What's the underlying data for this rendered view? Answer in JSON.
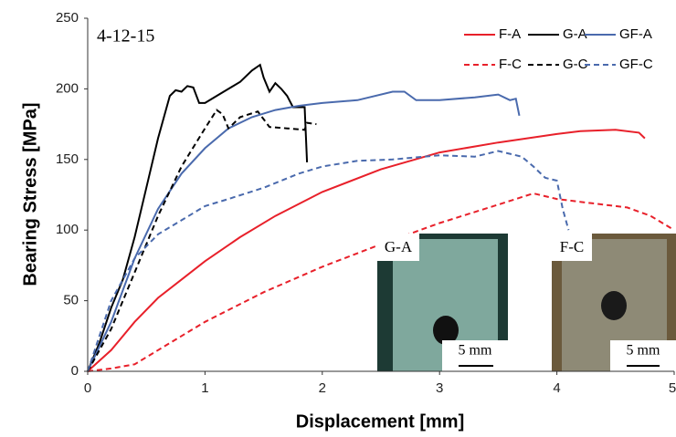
{
  "chart_data": {
    "type": "line",
    "annotation": "4-12-15",
    "xlabel": "Displacement [mm]",
    "ylabel": "Bearing Stress [MPa]",
    "xlim": [
      0,
      5
    ],
    "xticks": [
      0,
      1,
      2,
      3,
      4,
      5
    ],
    "ylim": [
      0,
      250
    ],
    "yticks": [
      0,
      50,
      100,
      150,
      200,
      250
    ],
    "insets": [
      {
        "label": "G-A",
        "scale": "5 mm"
      },
      {
        "label": "F-C",
        "scale": "5 mm"
      }
    ],
    "series": [
      {
        "name": "F-A",
        "color": "#e8202a",
        "dashed": false,
        "x": [
          0,
          0.2,
          0.4,
          0.6,
          0.8,
          1.0,
          1.3,
          1.6,
          2.0,
          2.5,
          3.0,
          3.5,
          4.0,
          4.2,
          4.5,
          4.7,
          4.75
        ],
        "values": [
          0,
          15,
          35,
          52,
          65,
          78,
          95,
          110,
          127,
          143,
          155,
          162,
          168,
          170,
          171,
          169,
          165
        ]
      },
      {
        "name": "G-A",
        "color": "#000000",
        "dashed": false,
        "x": [
          0,
          0.1,
          0.2,
          0.3,
          0.4,
          0.5,
          0.6,
          0.7,
          0.75,
          0.8,
          0.85,
          0.9,
          0.95,
          1.0,
          1.1,
          1.2,
          1.3,
          1.4,
          1.47,
          1.5,
          1.55,
          1.6,
          1.65,
          1.7,
          1.75,
          1.85,
          1.87
        ],
        "values": [
          0,
          20,
          45,
          65,
          95,
          130,
          165,
          195,
          199,
          198,
          202,
          201,
          190,
          190,
          195,
          200,
          205,
          213,
          217,
          208,
          198,
          204,
          200,
          195,
          187,
          187,
          148
        ]
      },
      {
        "name": "GF-A",
        "color": "#4a6aad",
        "dashed": false,
        "x": [
          0,
          0.2,
          0.4,
          0.6,
          0.8,
          1.0,
          1.2,
          1.4,
          1.6,
          1.8,
          2.0,
          2.3,
          2.6,
          2.7,
          2.8,
          3.0,
          3.3,
          3.5,
          3.6,
          3.65,
          3.68
        ],
        "values": [
          0,
          35,
          80,
          115,
          140,
          158,
          172,
          180,
          185,
          188,
          190,
          192,
          198,
          198,
          192,
          192,
          194,
          196,
          192,
          193,
          181
        ]
      },
      {
        "name": "F-C",
        "color": "#e8202a",
        "dashed": true,
        "x": [
          0,
          0.2,
          0.4,
          0.6,
          0.8,
          1.0,
          1.5,
          2.0,
          2.5,
          3.0,
          3.5,
          3.8,
          4.0,
          4.3,
          4.6,
          4.8,
          5.0
        ],
        "values": [
          0,
          2,
          5,
          15,
          25,
          35,
          56,
          74,
          90,
          105,
          118,
          126,
          122,
          119,
          116,
          110,
          100
        ]
      },
      {
        "name": "G-C",
        "color": "#000000",
        "dashed": true,
        "x": [
          0,
          0.2,
          0.4,
          0.6,
          0.8,
          1.0,
          1.1,
          1.15,
          1.2,
          1.3,
          1.45,
          1.55,
          1.7,
          1.85,
          1.87,
          1.95
        ],
        "values": [
          0,
          30,
          70,
          110,
          145,
          172,
          185,
          182,
          172,
          180,
          184,
          173,
          172,
          171,
          176,
          175
        ]
      },
      {
        "name": "GF-C",
        "color": "#4a6aad",
        "dashed": true,
        "x": [
          0,
          0.2,
          0.4,
          0.6,
          0.8,
          1.0,
          1.2,
          1.5,
          1.8,
          2.0,
          2.3,
          2.6,
          3.0,
          3.3,
          3.5,
          3.7,
          3.8,
          3.9,
          4.0,
          4.05,
          4.1
        ],
        "values": [
          0,
          50,
          80,
          97,
          107,
          117,
          122,
          130,
          140,
          145,
          149,
          150,
          153,
          152,
          156,
          152,
          145,
          137,
          135,
          115,
          100
        ]
      }
    ]
  }
}
